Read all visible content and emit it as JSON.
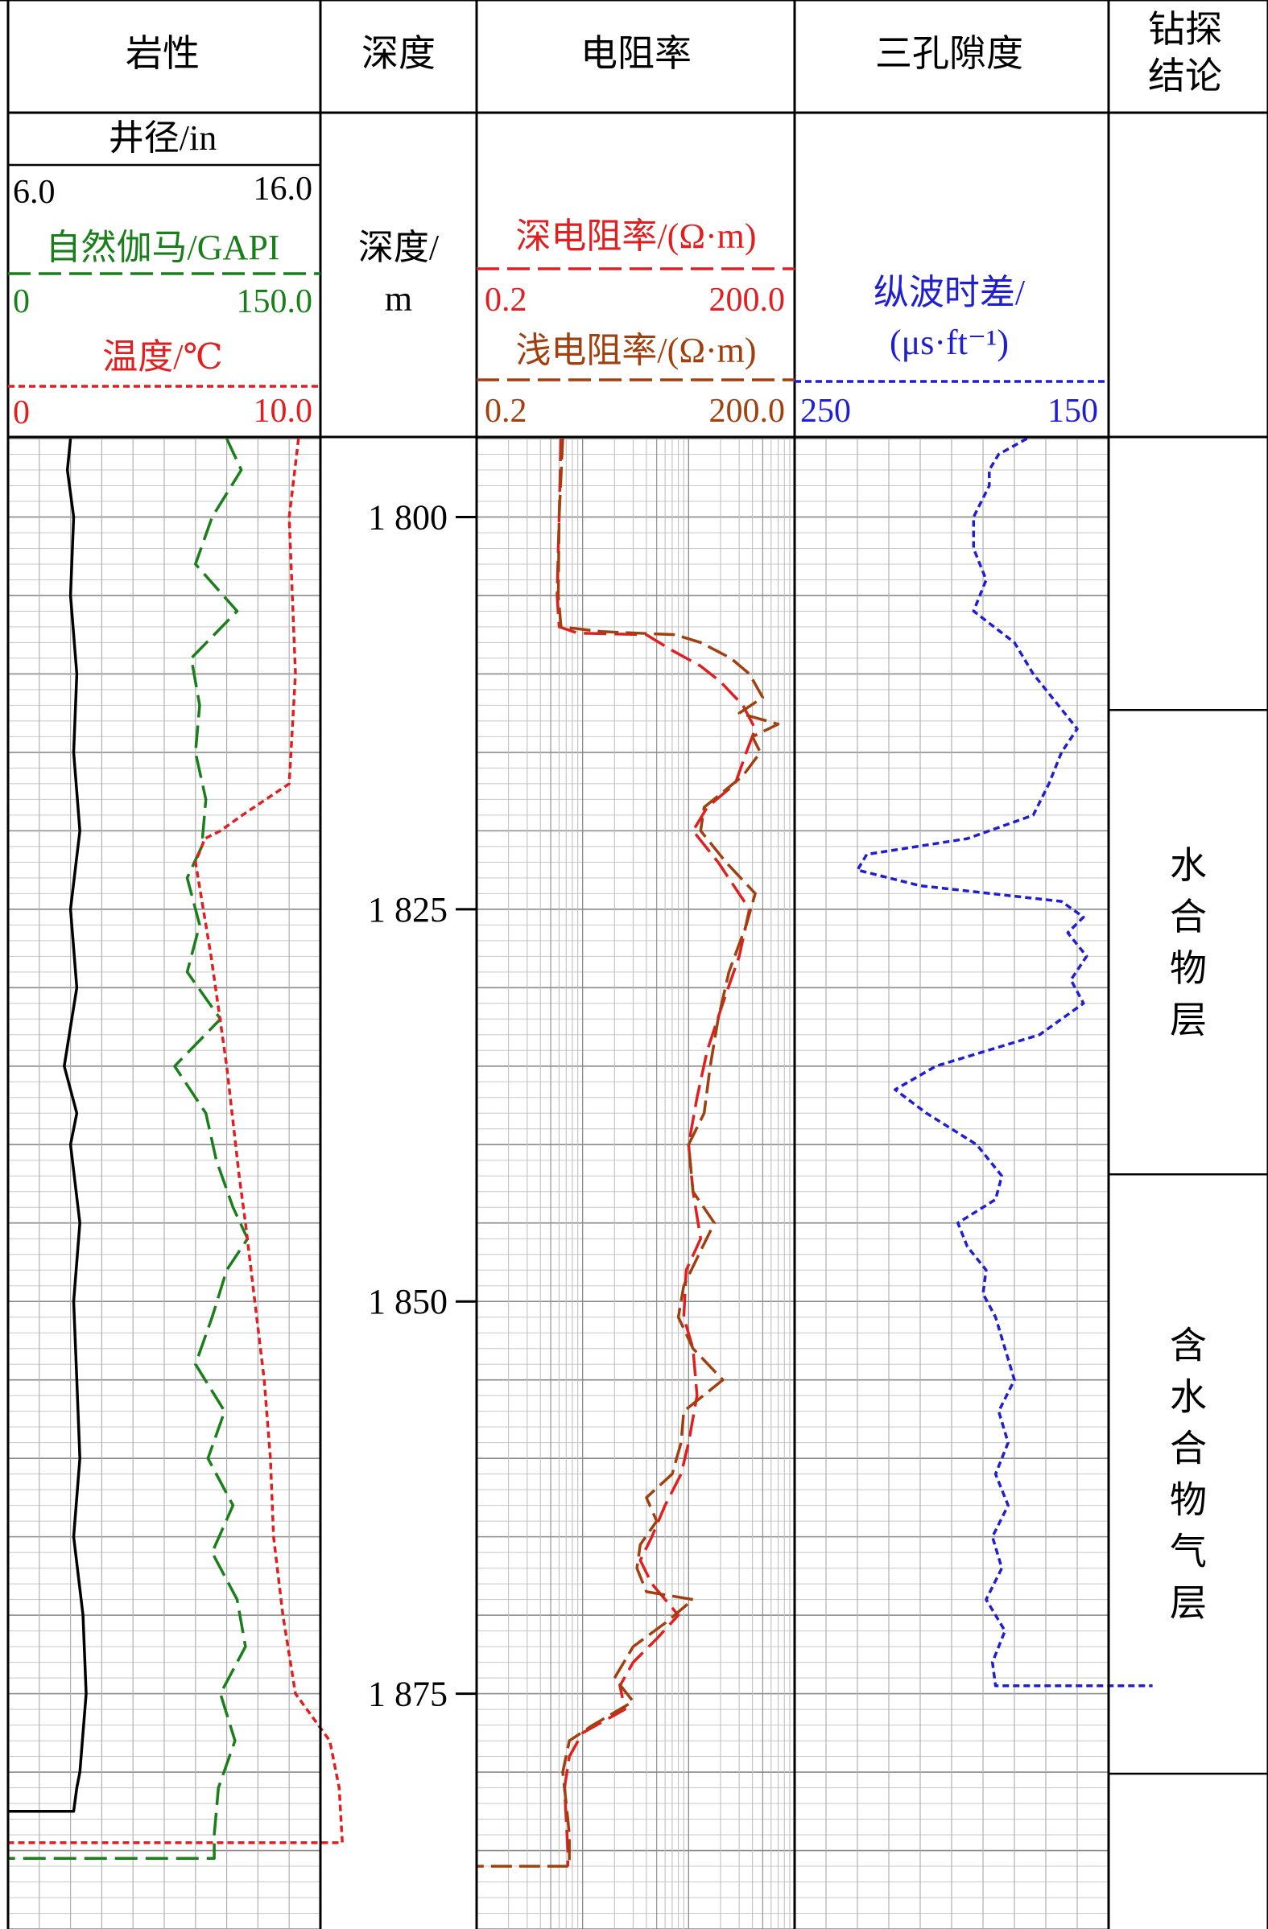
{
  "columns": {
    "lithology": "岩性",
    "depth": "深度",
    "resistivity": "电阻率",
    "porosity": "三孔隙度",
    "conclusion": "钻探结论"
  },
  "headers": {
    "caliper": {
      "label": "井径/in",
      "min": "6.0",
      "max": "16.0",
      "color": "#000000"
    },
    "gamma": {
      "label": "自然伽马/GAPI",
      "min": "0",
      "max": "150.0",
      "color": "#1a7f1a"
    },
    "temperature": {
      "label": "温度/℃",
      "min": "0",
      "max": "10.0",
      "color": "#e02020"
    },
    "depth_unit": "深度/m",
    "deep_res": {
      "label": "深电阻率/(Ω·m)",
      "min": "0.2",
      "max": "200.0",
      "color": "#e02020"
    },
    "shallow_res": {
      "label": "浅电阻率/(Ω·m)",
      "min": "0.2",
      "max": "200.0",
      "color": "#a0400f"
    },
    "sonic": {
      "label": "纵波时差/(μs·ft⁻¹)",
      "min": "250",
      "max": "150",
      "color": "#1f1fd0"
    }
  },
  "conclusions": [
    {
      "text": "水合物层",
      "top": 1812.3,
      "bottom": 1841.9
    },
    {
      "text": "含水合物气层",
      "top": 1841.9,
      "bottom": 1880.1
    }
  ],
  "chart_data": {
    "type": "line",
    "depth_axis": {
      "label": "深度/m",
      "range": [
        1795,
        1890
      ],
      "ticks": [
        "1 800",
        "1 825",
        "1 850",
        "1 875"
      ],
      "tick_values": [
        1800,
        1825,
        1850,
        1875
      ]
    },
    "series": [
      {
        "name": "井径/in",
        "scale": "linear",
        "range": [
          6.0,
          16.0
        ],
        "points": [
          [
            1795,
            8.0
          ],
          [
            1797,
            7.9
          ],
          [
            1800,
            8.1
          ],
          [
            1805,
            8.0
          ],
          [
            1810,
            8.2
          ],
          [
            1815,
            8.1
          ],
          [
            1820,
            8.3
          ],
          [
            1825,
            8.0
          ],
          [
            1830,
            8.2
          ],
          [
            1835,
            7.8
          ],
          [
            1838,
            8.2
          ],
          [
            1840,
            8.0
          ],
          [
            1845,
            8.3
          ],
          [
            1850,
            8.1
          ],
          [
            1855,
            8.2
          ],
          [
            1860,
            8.3
          ],
          [
            1865,
            8.1
          ],
          [
            1870,
            8.4
          ],
          [
            1875,
            8.5
          ],
          [
            1880,
            8.3
          ],
          [
            1881,
            8.2
          ],
          [
            1882.5,
            8.1
          ],
          [
            1882.5,
            6.0
          ]
        ]
      },
      {
        "name": "自然伽马/GAPI",
        "scale": "linear",
        "range": [
          0,
          150
        ],
        "points": [
          [
            1795,
            105
          ],
          [
            1797,
            112
          ],
          [
            1800,
            98
          ],
          [
            1803,
            90
          ],
          [
            1806,
            110
          ],
          [
            1809,
            88
          ],
          [
            1812,
            92
          ],
          [
            1815,
            90
          ],
          [
            1818,
            95
          ],
          [
            1821,
            93
          ],
          [
            1823,
            86
          ],
          [
            1826,
            92
          ],
          [
            1829,
            86
          ],
          [
            1832,
            102
          ],
          [
            1835,
            80
          ],
          [
            1838,
            95
          ],
          [
            1841,
            100
          ],
          [
            1844,
            108
          ],
          [
            1846,
            115
          ],
          [
            1848,
            105
          ],
          [
            1851,
            98
          ],
          [
            1854,
            90
          ],
          [
            1857,
            104
          ],
          [
            1860,
            96
          ],
          [
            1863,
            108
          ],
          [
            1866,
            98
          ],
          [
            1869,
            110
          ],
          [
            1872,
            114
          ],
          [
            1875,
            102
          ],
          [
            1878,
            109
          ],
          [
            1881,
            101
          ],
          [
            1884,
            99
          ],
          [
            1885.5,
            99
          ],
          [
            1885.5,
            0
          ]
        ]
      },
      {
        "name": "温度/℃",
        "scale": "linear",
        "range": [
          0,
          10
        ],
        "points": [
          [
            1795,
            9.3
          ],
          [
            1800,
            9.0
          ],
          [
            1810,
            9.2
          ],
          [
            1817,
            9.0
          ],
          [
            1819,
            7.5
          ],
          [
            1820,
            6.8
          ],
          [
            1820.5,
            6.3
          ],
          [
            1821,
            6.2
          ],
          [
            1822,
            6.0
          ],
          [
            1828,
            6.5
          ],
          [
            1835,
            7.0
          ],
          [
            1842,
            7.4
          ],
          [
            1845,
            7.6
          ],
          [
            1850,
            7.9
          ],
          [
            1855,
            8.2
          ],
          [
            1860,
            8.4
          ],
          [
            1865,
            8.5
          ],
          [
            1870,
            8.8
          ],
          [
            1875,
            9.2
          ],
          [
            1878,
            10.3
          ],
          [
            1881,
            10.6
          ],
          [
            1884.5,
            10.7
          ],
          [
            1884.5,
            0
          ]
        ]
      },
      {
        "name": "深电阻率/(Ω·m)",
        "scale": "log",
        "range": [
          0.2,
          200
        ],
        "points": [
          [
            1795,
            1.25
          ],
          [
            1800,
            1.2
          ],
          [
            1805,
            1.15
          ],
          [
            1807,
            1.2
          ],
          [
            1807.4,
            1.8
          ],
          [
            1807.5,
            8
          ],
          [
            1808.5,
            14
          ],
          [
            1809.5,
            26
          ],
          [
            1810.5,
            40
          ],
          [
            1812,
            65
          ],
          [
            1813.5,
            85
          ],
          [
            1815,
            70
          ],
          [
            1817,
            55
          ],
          [
            1818.5,
            30
          ],
          [
            1820,
            22
          ],
          [
            1822,
            38
          ],
          [
            1825,
            75
          ],
          [
            1828,
            60
          ],
          [
            1831,
            42
          ],
          [
            1834,
            30
          ],
          [
            1837,
            24
          ],
          [
            1840,
            20
          ],
          [
            1843,
            22
          ],
          [
            1846,
            26
          ],
          [
            1848,
            19
          ],
          [
            1851,
            18
          ],
          [
            1853,
            22
          ],
          [
            1856,
            24
          ],
          [
            1859,
            20
          ],
          [
            1861,
            17
          ],
          [
            1863,
            12
          ],
          [
            1865,
            9
          ],
          [
            1866.5,
            7
          ],
          [
            1868,
            9
          ],
          [
            1870,
            16
          ],
          [
            1871.5,
            10
          ],
          [
            1873,
            6
          ],
          [
            1874.5,
            4.5
          ],
          [
            1876,
            5
          ],
          [
            1877.5,
            2
          ],
          [
            1879,
            1.5
          ],
          [
            1881,
            1.35
          ],
          [
            1883,
            1.4
          ],
          [
            1885,
            1.45
          ],
          [
            1886,
            1.45
          ]
        ]
      },
      {
        "name": "浅电阻率/(Ω·m)",
        "scale": "log",
        "range": [
          0.2,
          200
        ],
        "points": [
          [
            1795,
            1.3
          ],
          [
            1800,
            1.2
          ],
          [
            1805,
            1.18
          ],
          [
            1807,
            1.25
          ],
          [
            1807.3,
            3
          ],
          [
            1807.5,
            15
          ],
          [
            1808,
            26
          ],
          [
            1809,
            50
          ],
          [
            1810,
            75
          ],
          [
            1811.5,
            100
          ],
          [
            1812.5,
            60
          ],
          [
            1813.2,
            140
          ],
          [
            1814,
            80
          ],
          [
            1815,
            95
          ],
          [
            1816.5,
            65
          ],
          [
            1818.5,
            28
          ],
          [
            1820,
            26
          ],
          [
            1822,
            45
          ],
          [
            1824,
            85
          ],
          [
            1826,
            70
          ],
          [
            1829,
            48
          ],
          [
            1832,
            38
          ],
          [
            1835,
            32
          ],
          [
            1838,
            28
          ],
          [
            1840,
            20
          ],
          [
            1843,
            22
          ],
          [
            1845,
            35
          ],
          [
            1847,
            25
          ],
          [
            1849,
            18
          ],
          [
            1851,
            16
          ],
          [
            1853,
            22
          ],
          [
            1855,
            42
          ],
          [
            1857,
            18
          ],
          [
            1859,
            17
          ],
          [
            1861,
            14
          ],
          [
            1862.5,
            8
          ],
          [
            1864,
            10
          ],
          [
            1865.5,
            7
          ],
          [
            1867,
            6.5
          ],
          [
            1868.5,
            8
          ],
          [
            1869,
            22
          ],
          [
            1870.5,
            12
          ],
          [
            1872,
            6
          ],
          [
            1874,
            4
          ],
          [
            1875.5,
            6
          ],
          [
            1877,
            2.5
          ],
          [
            1878,
            1.5
          ],
          [
            1880,
            1.3
          ],
          [
            1882,
            1.4
          ],
          [
            1884,
            1.5
          ],
          [
            1886,
            1.5
          ],
          [
            1886,
            0.2
          ]
        ]
      },
      {
        "name": "纵波时差/(μs·ft⁻¹)",
        "scale": "linear",
        "range": [
          250,
          150
        ],
        "points": [
          [
            1795,
            176
          ],
          [
            1796,
            185
          ],
          [
            1797,
            188
          ],
          [
            1798,
            188
          ],
          [
            1800,
            193
          ],
          [
            1802,
            193
          ],
          [
            1804,
            189
          ],
          [
            1806,
            193
          ],
          [
            1808,
            180
          ],
          [
            1810,
            174
          ],
          [
            1812,
            166
          ],
          [
            1813.5,
            160
          ],
          [
            1815,
            165
          ],
          [
            1817,
            169
          ],
          [
            1819,
            174
          ],
          [
            1820.5,
            195
          ],
          [
            1821.5,
            227
          ],
          [
            1822.5,
            230
          ],
          [
            1823.5,
            210
          ],
          [
            1824.5,
            165
          ],
          [
            1825.5,
            158
          ],
          [
            1826.5,
            163
          ],
          [
            1828,
            157
          ],
          [
            1829.5,
            162
          ],
          [
            1831,
            158
          ],
          [
            1833,
            172
          ],
          [
            1835,
            205
          ],
          [
            1836.5,
            218
          ],
          [
            1838,
            208
          ],
          [
            1840,
            192
          ],
          [
            1842,
            184
          ],
          [
            1843.5,
            186
          ],
          [
            1845,
            198
          ],
          [
            1846.5,
            195
          ],
          [
            1848,
            189
          ],
          [
            1849.5,
            190
          ],
          [
            1851,
            186
          ],
          [
            1853,
            183
          ],
          [
            1855,
            180
          ],
          [
            1857,
            185
          ],
          [
            1859,
            182
          ],
          [
            1861,
            186
          ],
          [
            1863,
            182
          ],
          [
            1865,
            187
          ],
          [
            1867,
            184
          ],
          [
            1869,
            189
          ],
          [
            1871,
            183
          ],
          [
            1873,
            187
          ],
          [
            1874.5,
            186
          ],
          [
            1874.5,
            136
          ]
        ]
      }
    ]
  }
}
